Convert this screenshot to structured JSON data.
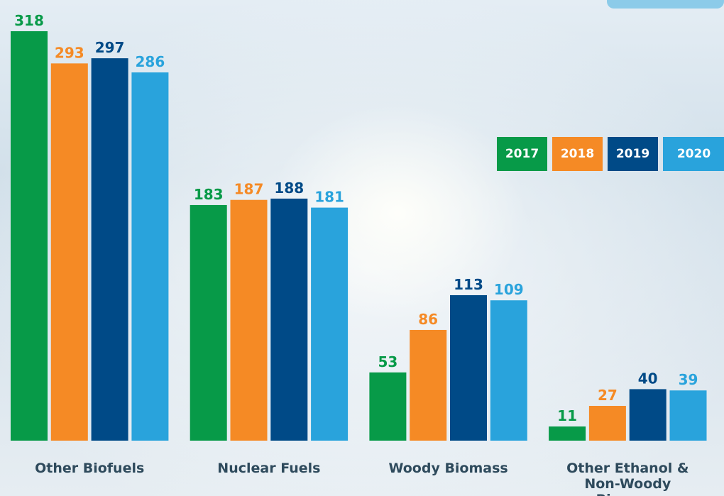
{
  "chart_data": {
    "type": "bar",
    "categories": [
      "Other Biofuels",
      "Nuclear Fuels",
      "Woody Biomass",
      "Other Ethanol & Non-Woody Biomass"
    ],
    "series": [
      {
        "name": "2017",
        "color": "#079a48",
        "values": [
          318,
          183,
          53,
          11
        ]
      },
      {
        "name": "2018",
        "color": "#f58a25",
        "values": [
          293,
          187,
          86,
          27
        ]
      },
      {
        "name": "2019",
        "color": "#004a87",
        "values": [
          297,
          188,
          113,
          40
        ]
      },
      {
        "name": "2020",
        "color": "#29a3dc",
        "values": [
          286,
          181,
          109,
          39
        ]
      }
    ],
    "legend": "right"
  }
}
